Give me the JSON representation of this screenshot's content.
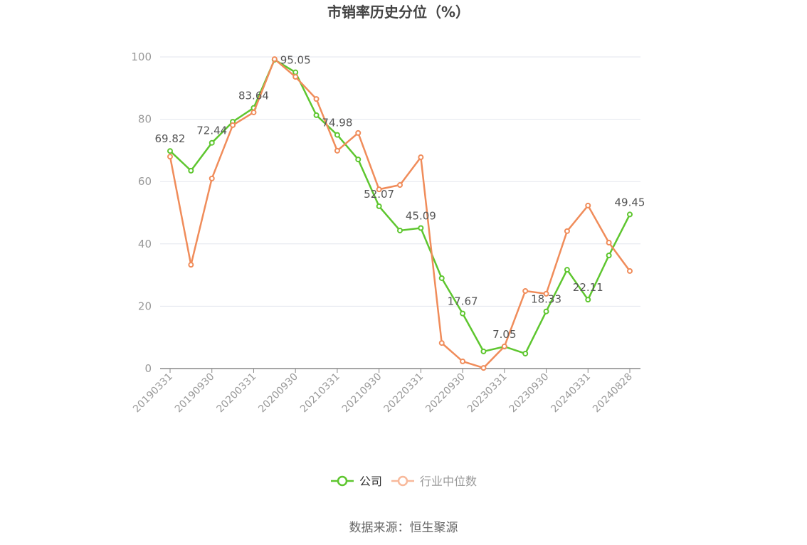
{
  "chart_data": {
    "type": "line",
    "title": "市销率历史分位（%）",
    "source": "数据来源：恒生聚源",
    "categories": [
      "20190331",
      null,
      "20190930",
      null,
      "20200331",
      null,
      "20200930",
      null,
      "20210331",
      null,
      "20210930",
      null,
      "20220331",
      null,
      "20220930",
      null,
      "20230331",
      null,
      "20230930",
      null,
      "20240331",
      null,
      "20240828"
    ],
    "series": [
      {
        "name": "公司",
        "color": "#5ec62f",
        "data_labels": true,
        "values": [
          69.82,
          63.5,
          72.44,
          79.2,
          83.64,
          99.1,
          95.05,
          81.3,
          74.98,
          67.1,
          52.07,
          44.3,
          45.09,
          29.0,
          17.67,
          5.5,
          7.05,
          4.8,
          18.33,
          31.7,
          22.11,
          36.3,
          49.45
        ]
      },
      {
        "name": "行业中位数",
        "color": "#f08c5a",
        "data_labels": false,
        "values": [
          68.0,
          33.3,
          61.0,
          78.1,
          82.2,
          99.3,
          93.6,
          86.5,
          69.9,
          75.6,
          57.5,
          58.9,
          67.8,
          8.2,
          2.3,
          0.2,
          7.1,
          24.9,
          24.0,
          44.1,
          52.3,
          40.4,
          31.3
        ]
      }
    ],
    "ylim": [
      0,
      100
    ],
    "yticks": [
      0,
      20,
      40,
      60,
      80,
      100
    ],
    "grid": true,
    "legend": "bottom"
  }
}
